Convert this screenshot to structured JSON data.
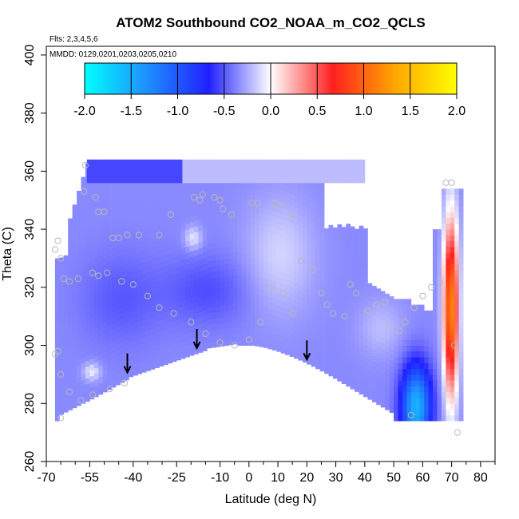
{
  "chart_data": {
    "type": "heatmap",
    "title": "ATOM2 Southbound CO2_NOAA_m_CO2_QCLS",
    "subtitle_flights": "Flts: 2,3,4,5,6",
    "subtitle_dates": "MMDD: 0129,0201,0203,0205,0210",
    "xlabel": "Latitude (deg N)",
    "ylabel": "Theta (C)",
    "xlim": [
      -70,
      85
    ],
    "ylim": [
      260,
      403
    ],
    "x_ticks": [
      -70,
      -55,
      -40,
      -25,
      -10,
      0,
      10,
      20,
      30,
      40,
      50,
      60,
      70,
      80
    ],
    "x_minor_ticks": [
      -65,
      -60,
      -50,
      -45,
      -35,
      -30,
      -20,
      -15,
      -5,
      5,
      15,
      25,
      35,
      45,
      55,
      65,
      75,
      85
    ],
    "y_ticks": [
      260,
      280,
      300,
      320,
      340,
      360,
      380,
      400
    ],
    "colorbar": {
      "range": [
        -2.0,
        2.0
      ],
      "ticks": [
        "-2.0",
        "-1.5",
        "-1.0",
        "-0.5",
        "0.0",
        "0.5",
        "1.0",
        "1.5",
        "2.0"
      ],
      "colors": [
        "#00ffff",
        "#1e90ff",
        "#2020ff",
        "#ffffff",
        "#ff2020",
        "#ffa500",
        "#ffff00"
      ]
    },
    "arrows_latitude": [
      -42,
      -18,
      20
    ],
    "observations": [
      [
        -56.5,
        362
      ],
      [
        -57,
        353
      ],
      [
        -53,
        351
      ],
      [
        -52,
        346
      ],
      [
        -50,
        346
      ],
      [
        -47,
        337
      ],
      [
        -45,
        337
      ],
      [
        -42,
        338
      ],
      [
        -38,
        338
      ],
      [
        -31,
        338
      ],
      [
        -27,
        345
      ],
      [
        -19,
        351
      ],
      [
        -17,
        350
      ],
      [
        -16,
        352
      ],
      [
        -12,
        351
      ],
      [
        -10,
        350
      ],
      [
        -9,
        347
      ],
      [
        -6,
        345
      ],
      [
        1,
        349
      ],
      [
        3,
        349
      ],
      [
        9,
        349
      ],
      [
        11,
        348
      ],
      [
        15,
        345
      ],
      [
        -66,
        336
      ],
      [
        -67,
        333
      ],
      [
        -65,
        330
      ],
      [
        -64,
        323
      ],
      [
        -62,
        322
      ],
      [
        -59,
        323
      ],
      [
        -54,
        325
      ],
      [
        -52,
        324
      ],
      [
        -49,
        325
      ],
      [
        -44,
        322
      ],
      [
        -40,
        321
      ],
      [
        -35,
        317
      ],
      [
        -31,
        313
      ],
      [
        -26,
        311
      ],
      [
        -20,
        308
      ],
      [
        -15,
        304
      ],
      [
        -10,
        301
      ],
      [
        -5,
        300
      ],
      [
        0,
        302
      ],
      [
        4,
        308
      ],
      [
        8,
        320
      ],
      [
        12,
        318
      ],
      [
        15,
        311
      ],
      [
        18,
        329
      ],
      [
        22,
        326
      ],
      [
        25,
        318
      ],
      [
        27,
        314
      ],
      [
        29,
        311
      ],
      [
        33,
        310
      ],
      [
        35,
        321
      ],
      [
        37,
        318
      ],
      [
        41,
        312
      ],
      [
        44,
        314
      ],
      [
        47,
        315
      ],
      [
        48,
        307
      ],
      [
        52,
        305
      ],
      [
        54,
        308
      ],
      [
        57,
        313
      ],
      [
        60,
        317
      ],
      [
        63,
        320
      ],
      [
        66,
        322
      ],
      [
        68,
        356
      ],
      [
        70,
        356
      ],
      [
        71,
        300
      ],
      [
        72,
        270
      ],
      [
        -66,
        298
      ],
      [
        -67,
        297
      ],
      [
        -65,
        290
      ],
      [
        -62,
        284
      ],
      [
        -58,
        281
      ],
      [
        -54,
        283
      ],
      [
        -48,
        285
      ],
      [
        -43,
        287
      ],
      [
        56,
        276
      ],
      [
        -65,
        275
      ]
    ]
  }
}
